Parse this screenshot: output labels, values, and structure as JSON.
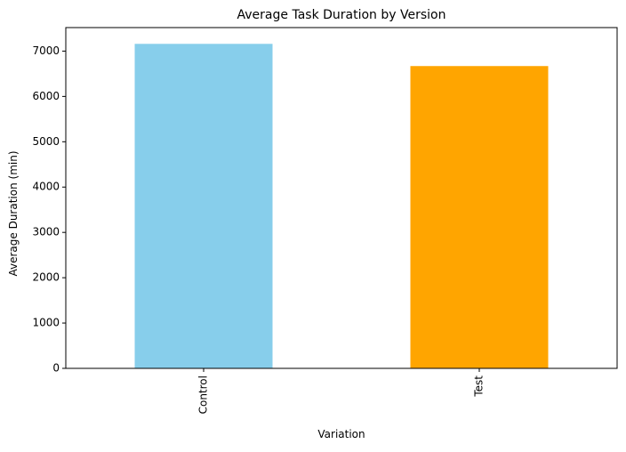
{
  "chart_data": {
    "type": "bar",
    "title": "Average Task Duration by Version",
    "xlabel": "Variation",
    "ylabel": "Average Duration (min)",
    "categories": [
      "Control",
      "Test"
    ],
    "values": [
      7160,
      6670
    ],
    "colors": [
      "#87ceeb",
      "#ffa500"
    ],
    "ylim": [
      0,
      7519
    ],
    "yticks": [
      0,
      1000,
      2000,
      3000,
      4000,
      5000,
      6000,
      7000
    ],
    "grid": false,
    "legend": "none"
  }
}
